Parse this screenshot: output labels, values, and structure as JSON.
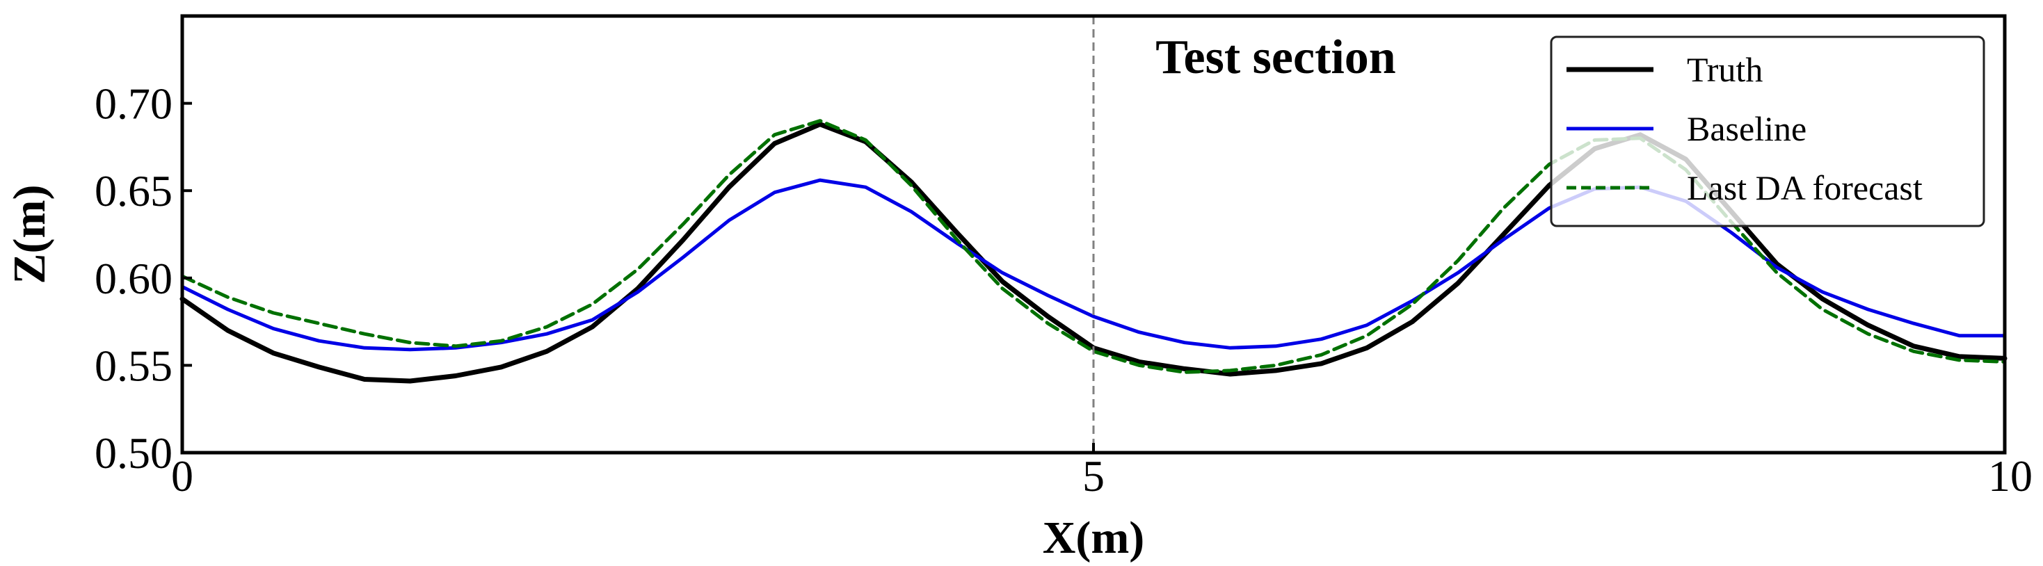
{
  "chart_data": {
    "type": "line",
    "xlabel": "X(m)",
    "ylabel": "Z(m)",
    "xlim": [
      0,
      10
    ],
    "ylim": [
      0.5,
      0.75
    ],
    "xticks": [
      0,
      5,
      10
    ],
    "xtick_labels": [
      "0",
      "5",
      "10"
    ],
    "yticks": [
      0.5,
      0.55,
      0.6,
      0.65,
      0.7
    ],
    "ytick_labels": [
      "0.50",
      "0.55",
      "0.60",
      "0.65",
      "0.70"
    ],
    "grid": false,
    "legend": {
      "position": "top-right"
    },
    "annotations": [
      {
        "text": "Test section",
        "x": 6.0,
        "y": 0.727
      }
    ],
    "vlines": [
      {
        "x": 5,
        "style": "dashed",
        "color": "#808080"
      }
    ],
    "x": [
      0,
      0.25,
      0.5,
      0.75,
      1.0,
      1.25,
      1.5,
      1.75,
      2.0,
      2.25,
      2.5,
      2.75,
      3.0,
      3.25,
      3.5,
      3.75,
      4.0,
      4.25,
      4.5,
      4.75,
      5.0,
      5.25,
      5.5,
      5.75,
      6.0,
      6.25,
      6.5,
      6.75,
      7.0,
      7.25,
      7.5,
      7.75,
      8.0,
      8.25,
      8.5,
      8.75,
      9.0,
      9.25,
      9.5,
      9.75,
      10.0
    ],
    "series": [
      {
        "name": "Truth",
        "color": "#000000",
        "style": "solid",
        "width": 7,
        "values": [
          0.588,
          0.57,
          0.557,
          0.549,
          0.542,
          0.541,
          0.544,
          0.549,
          0.558,
          0.572,
          0.594,
          0.622,
          0.652,
          0.677,
          0.688,
          0.678,
          0.655,
          0.626,
          0.598,
          0.578,
          0.56,
          0.552,
          0.548,
          0.545,
          0.547,
          0.551,
          0.56,
          0.575,
          0.597,
          0.625,
          0.653,
          0.674,
          0.682,
          0.668,
          0.638,
          0.608,
          0.588,
          0.573,
          0.561,
          0.555,
          0.554
        ]
      },
      {
        "name": "Baseline",
        "color": "#0000e6",
        "style": "solid",
        "width": 5,
        "values": [
          0.595,
          0.582,
          0.571,
          0.564,
          0.56,
          0.559,
          0.56,
          0.563,
          0.568,
          0.576,
          0.592,
          0.612,
          0.633,
          0.649,
          0.656,
          0.652,
          0.638,
          0.62,
          0.603,
          0.59,
          0.578,
          0.569,
          0.563,
          0.56,
          0.561,
          0.565,
          0.573,
          0.587,
          0.603,
          0.622,
          0.64,
          0.651,
          0.652,
          0.644,
          0.626,
          0.606,
          0.592,
          0.582,
          0.574,
          0.567,
          0.567
        ]
      },
      {
        "name": "Last DA forecast",
        "color": "#007000",
        "style": "dashed",
        "width": 5,
        "values": [
          0.601,
          0.589,
          0.58,
          0.574,
          0.568,
          0.563,
          0.561,
          0.564,
          0.572,
          0.585,
          0.605,
          0.631,
          0.659,
          0.682,
          0.69,
          0.679,
          0.653,
          0.622,
          0.594,
          0.574,
          0.558,
          0.55,
          0.546,
          0.547,
          0.55,
          0.556,
          0.567,
          0.585,
          0.61,
          0.64,
          0.665,
          0.679,
          0.68,
          0.662,
          0.632,
          0.603,
          0.582,
          0.568,
          0.558,
          0.553,
          0.552
        ]
      }
    ]
  }
}
